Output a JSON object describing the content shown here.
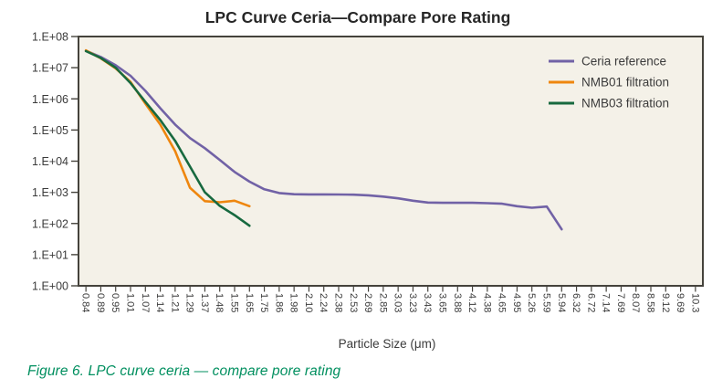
{
  "chart_data": {
    "type": "line",
    "title": "LPC Curve Ceria—Compare Pore Rating",
    "xlabel": "Particle Size (μm)",
    "caption": "Figure 6. LPC curve ceria — compare pore rating",
    "grid": false,
    "legend_position": "top-right-inside",
    "y_axis": {
      "scale": "log",
      "log_range": [
        0,
        8
      ],
      "tick_labels": [
        "1.E+08",
        "1.E+07",
        "1.E+06",
        "1.E+05",
        "1.E+04",
        "1.E+03",
        "1.E+02",
        "1.E+01",
        "1.E+00"
      ]
    },
    "categories": [
      "0.84",
      "0.89",
      "0.95",
      "1.01",
      "1.07",
      "1.14",
      "1.21",
      "1.29",
      "1.37",
      "1.48",
      "1.55",
      "1.65",
      "1.75",
      "1.86",
      "1.98",
      "2.10",
      "2.24",
      "2.38",
      "2.53",
      "2.69",
      "2.85",
      "3.03",
      "3.23",
      "3.43",
      "3.65",
      "3.88",
      "4.12",
      "4.38",
      "4.65",
      "4.95",
      "5.26",
      "5.59",
      "5.94",
      "6.32",
      "6.72",
      "7.14",
      "7.69",
      "8.07",
      "8.58",
      "9.12",
      "9.69",
      "10.3"
    ],
    "series": [
      {
        "name": "Ceria reference",
        "color": "#7162a6",
        "values": [
          35000000,
          22000000,
          12000000,
          5500000,
          1800000,
          500000,
          150000,
          55000,
          26000,
          11000,
          4500,
          2200,
          1250,
          950,
          870,
          860,
          860,
          850,
          840,
          800,
          730,
          640,
          540,
          470,
          460,
          460,
          460,
          450,
          430,
          360,
          320,
          350,
          65,
          null,
          null,
          null,
          null,
          null,
          null,
          null,
          null,
          null
        ]
      },
      {
        "name": "NMB01 filtration",
        "color": "#ee860e",
        "values": [
          36000000,
          20000000,
          9500000,
          3500000,
          700000,
          150000,
          21000,
          1400,
          520,
          480,
          540,
          360,
          null,
          null,
          null,
          null,
          null,
          null,
          null,
          null,
          null,
          null,
          null,
          null,
          null,
          null,
          null,
          null,
          null,
          null,
          null,
          null,
          null,
          null,
          null,
          null,
          null,
          null,
          null,
          null,
          null,
          null
        ]
      },
      {
        "name": "NMB03 filtration",
        "color": "#17693f",
        "values": [
          34000000,
          20500000,
          10000000,
          3200000,
          800000,
          210000,
          45000,
          6700,
          1000,
          370,
          185,
          85,
          null,
          null,
          null,
          null,
          null,
          null,
          null,
          null,
          null,
          null,
          null,
          null,
          null,
          null,
          null,
          null,
          null,
          null,
          null,
          null,
          null,
          null,
          null,
          null,
          null,
          null,
          null,
          null,
          null,
          null
        ]
      }
    ],
    "colors": {
      "plot_bg": "#f4f1e8",
      "plot_border": "#45433c",
      "text": "#3b3b3b",
      "title_text": "#262626",
      "caption_text": "#008f5f"
    }
  }
}
